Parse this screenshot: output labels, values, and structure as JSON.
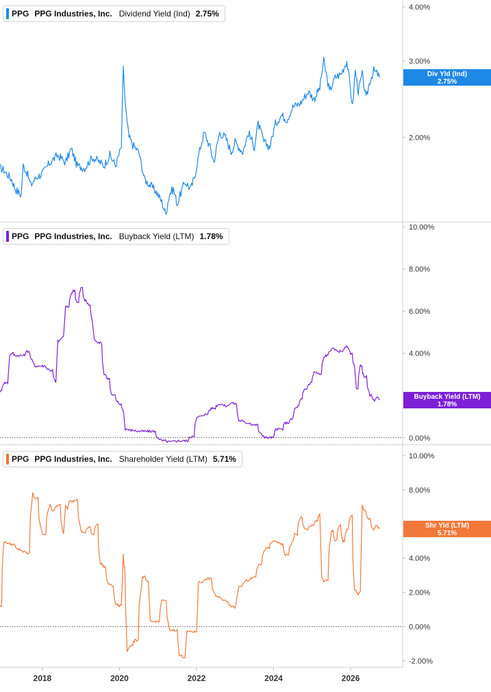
{
  "chart_data": [
    {
      "type": "line",
      "legend": {
        "ticker": "PPG",
        "company": "PPG Industries, Inc.",
        "metric": "Dividend Yield (Ind)",
        "value": "2.75%"
      },
      "y_scale": "log",
      "ylim": [
        1.28,
        4.15
      ],
      "y_ticks": [
        {
          "value": 4.0,
          "label": "4.00%"
        },
        {
          "value": 3.0,
          "label": "3.00%"
        },
        {
          "value": 2.0,
          "label": "2.00%"
        }
      ],
      "zero_line": false,
      "color": "#1e88e5",
      "badge": {
        "name": "Div Yld (Ind)",
        "value": "2.75%"
      },
      "last_value": 2.75,
      "series": {
        "x": [
          2016.9,
          2017.0,
          2017.2,
          2017.3,
          2017.45,
          2017.5,
          2017.6,
          2017.7,
          2017.85,
          2018.0,
          2018.2,
          2018.4,
          2018.6,
          2018.75,
          2018.9,
          2019.1,
          2019.3,
          2019.5,
          2019.6,
          2019.75,
          2019.9,
          2020.05,
          2020.1,
          2020.15,
          2020.2,
          2020.25,
          2020.35,
          2020.5,
          2020.65,
          2020.8,
          2020.95,
          2021.1,
          2021.2,
          2021.3,
          2021.4,
          2021.5,
          2021.55,
          2021.7,
          2021.85,
          2021.95,
          2022.1,
          2022.2,
          2022.35,
          2022.45,
          2022.6,
          2022.75,
          2022.9,
          2023.0,
          2023.2,
          2023.35,
          2023.5,
          2023.6,
          2023.75,
          2023.9,
          2024.05,
          2024.2,
          2024.35,
          2024.5,
          2024.7,
          2024.9,
          2025.05,
          2025.2,
          2025.3,
          2025.45,
          2025.6,
          2025.75,
          2025.9,
          2026.05,
          2026.12,
          2026.2,
          2026.3,
          2026.4,
          2026.5,
          2026.6,
          2026.7,
          2026.75
        ],
        "y": [
          1.7,
          1.68,
          1.6,
          1.52,
          1.47,
          1.72,
          1.66,
          1.55,
          1.62,
          1.65,
          1.75,
          1.82,
          1.75,
          1.88,
          1.72,
          1.7,
          1.8,
          1.75,
          1.72,
          1.82,
          1.72,
          1.9,
          2.88,
          2.4,
          2.15,
          2.0,
          1.92,
          1.85,
          1.6,
          1.55,
          1.5,
          1.42,
          1.33,
          1.48,
          1.52,
          1.4,
          1.45,
          1.58,
          1.52,
          1.62,
          1.9,
          2.05,
          1.9,
          1.75,
          2.05,
          2.0,
          1.85,
          1.95,
          1.85,
          2.05,
          1.9,
          2.15,
          1.95,
          1.9,
          2.15,
          2.25,
          2.2,
          2.35,
          2.4,
          2.55,
          2.45,
          2.6,
          3.0,
          2.55,
          2.75,
          2.8,
          3.0,
          2.35,
          2.85,
          2.55,
          2.8,
          2.45,
          2.7,
          2.85,
          2.8,
          2.75
        ]
      }
    },
    {
      "type": "line",
      "legend": {
        "ticker": "PPG",
        "company": "PPG Industries, Inc.",
        "metric": "Buyback Yield (LTM)",
        "value": "1.78%"
      },
      "y_scale": "linear",
      "ylim": [
        -0.3,
        10.2
      ],
      "y_ticks": [
        {
          "value": 10,
          "label": "10.00%"
        },
        {
          "value": 8,
          "label": "8.00%"
        },
        {
          "value": 6,
          "label": "6.00%"
        },
        {
          "value": 4,
          "label": "4.00%"
        },
        {
          "value": 0,
          "label": "0.00%"
        }
      ],
      "zero_line": true,
      "color": "#7c1fd6",
      "badge": {
        "name": "Buyback Yield (LTM)",
        "value": "1.78%"
      },
      "last_value": 1.78,
      "series": {
        "x": [
          2016.9,
          2017.0,
          2017.1,
          2017.15,
          2017.2,
          2017.3,
          2017.5,
          2017.6,
          2017.75,
          2017.8,
          2018.0,
          2018.2,
          2018.35,
          2018.4,
          2018.55,
          2018.6,
          2018.8,
          2018.9,
          2019.0,
          2019.1,
          2019.2,
          2019.3,
          2019.35,
          2019.5,
          2019.6,
          2019.7,
          2019.8,
          2020.0,
          2020.1,
          2020.15,
          2020.3,
          2020.5,
          2020.8,
          2021.1,
          2021.3,
          2021.5,
          2021.7,
          2021.9,
          2022.0,
          2022.05,
          2022.2,
          2022.4,
          2022.6,
          2022.75,
          2022.9,
          2023.0,
          2023.1,
          2023.3,
          2023.5,
          2023.7,
          2023.8,
          2024.0,
          2024.05,
          2024.2,
          2024.3,
          2024.5,
          2024.55,
          2024.65,
          2024.7,
          2024.8,
          2024.95,
          2025.05,
          2025.2,
          2025.3,
          2025.35,
          2025.5,
          2025.7,
          2025.9,
          2026.0,
          2026.1,
          2026.15,
          2026.25,
          2026.35,
          2026.5,
          2026.6,
          2026.7,
          2026.75
        ],
        "y": [
          2.2,
          2.6,
          2.6,
          3.9,
          4.0,
          3.9,
          3.9,
          4.1,
          3.6,
          3.4,
          3.4,
          3.2,
          2.6,
          4.6,
          4.8,
          6.2,
          7.0,
          6.4,
          7.1,
          6.5,
          6.3,
          5.5,
          4.6,
          4.5,
          3.0,
          2.8,
          2.0,
          1.6,
          1.3,
          0.4,
          0.35,
          0.3,
          0.3,
          -0.15,
          -0.2,
          -0.15,
          -0.15,
          0.1,
          0.9,
          1.0,
          1.1,
          1.4,
          1.6,
          1.5,
          1.65,
          1.6,
          0.8,
          0.7,
          0.6,
          0.1,
          0.0,
          0.0,
          0.4,
          0.4,
          0.7,
          0.9,
          1.4,
          1.5,
          1.8,
          2.3,
          2.6,
          3.1,
          3.0,
          3.8,
          3.9,
          4.2,
          4.1,
          4.3,
          4.0,
          3.4,
          2.3,
          3.4,
          2.9,
          2.0,
          1.75,
          1.9,
          1.78
        ]
      }
    },
    {
      "type": "line",
      "legend": {
        "ticker": "PPG",
        "company": "PPG Industries, Inc.",
        "metric": "Shareholder Yield (LTM)",
        "value": "5.71%"
      },
      "y_scale": "linear",
      "ylim": [
        -2.3,
        10.6
      ],
      "y_ticks": [
        {
          "value": 10,
          "label": "10.00%"
        },
        {
          "value": 8,
          "label": "8.00%"
        },
        {
          "value": 6,
          "label": "6.00%"
        },
        {
          "value": 4,
          "label": "4.00%"
        },
        {
          "value": 2,
          "label": "2.00%"
        },
        {
          "value": 0,
          "label": "0.00%"
        },
        {
          "value": -2,
          "label": "-2.00%"
        }
      ],
      "zero_line": true,
      "color": "#f07838",
      "badge": {
        "name": "Shr Yld (LTM)",
        "value": "5.71%"
      },
      "last_value": 5.71,
      "x_ticks": [
        {
          "value": 2018,
          "label": "2018"
        },
        {
          "value": 2020,
          "label": "2020"
        },
        {
          "value": 2022,
          "label": "2022"
        },
        {
          "value": 2024,
          "label": "2024"
        },
        {
          "value": 2026,
          "label": "2026"
        }
      ],
      "x_range": [
        2016.9,
        2027.35
      ],
      "series": {
        "x": [
          2016.9,
          2017.0,
          2017.05,
          2017.2,
          2017.4,
          2017.5,
          2017.6,
          2017.75,
          2017.8,
          2018.0,
          2018.2,
          2018.25,
          2018.4,
          2018.55,
          2018.6,
          2018.65,
          2018.7,
          2018.8,
          2018.85,
          2019.0,
          2019.05,
          2019.2,
          2019.3,
          2019.4,
          2019.5,
          2019.6,
          2019.7,
          2019.8,
          2019.9,
          2020.0,
          2020.05,
          2020.1,
          2020.12,
          2020.2,
          2020.25,
          2020.3,
          2020.4,
          2020.6,
          2020.75,
          2020.8,
          2021.0,
          2021.1,
          2021.15,
          2021.3,
          2021.5,
          2021.55,
          2021.7,
          2021.75,
          2022.0,
          2022.05,
          2022.3,
          2022.5,
          2022.55,
          2022.75,
          2022.9,
          2023.0,
          2023.05,
          2023.1,
          2023.3,
          2023.5,
          2023.6,
          2023.8,
          2024.0,
          2024.2,
          2024.3,
          2024.5,
          2024.55,
          2024.7,
          2024.8,
          2025.0,
          2025.1,
          2025.2,
          2025.25,
          2025.3,
          2025.35,
          2025.5,
          2025.6,
          2025.7,
          2025.8,
          2025.9,
          2026.0,
          2026.1,
          2026.2,
          2026.25,
          2026.3,
          2026.35,
          2026.45,
          2026.6,
          2026.65,
          2026.75
        ],
        "y": [
          1.2,
          5.0,
          4.9,
          4.8,
          4.5,
          4.4,
          4.3,
          7.8,
          7.5,
          5.4,
          7.2,
          6.8,
          7.1,
          5.4,
          7.1,
          6.9,
          7.4,
          7.3,
          7.4,
          5.6,
          5.5,
          5.8,
          5.4,
          6.0,
          3.7,
          3.5,
          2.5,
          2.4,
          1.3,
          1.2,
          1.3,
          4.2,
          3.5,
          -1.4,
          -1.2,
          -1.1,
          -0.8,
          2.9,
          2.6,
          0.3,
          0.3,
          1.6,
          1.5,
          -0.2,
          -0.2,
          -1.7,
          -1.8,
          -0.3,
          -0.3,
          2.6,
          2.8,
          1.8,
          1.7,
          1.5,
          1.2,
          1.1,
          1.7,
          2.4,
          2.7,
          2.9,
          3.6,
          4.6,
          5.0,
          4.8,
          4.2,
          5.0,
          5.4,
          6.4,
          5.7,
          5.9,
          6.2,
          6.6,
          2.9,
          2.6,
          2.7,
          5.6,
          5.0,
          5.9,
          5.0,
          5.7,
          6.5,
          2.1,
          1.9,
          2.0,
          7.1,
          6.8,
          6.3,
          5.6,
          5.9,
          5.71
        ]
      }
    }
  ]
}
